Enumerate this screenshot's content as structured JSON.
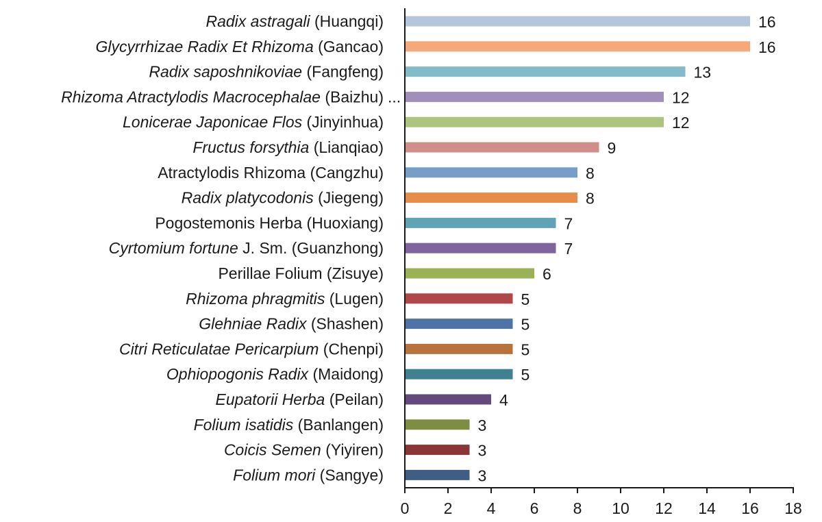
{
  "chart_data": {
    "type": "bar",
    "orientation": "horizontal",
    "title": "",
    "xlabel": "",
    "ylabel": "",
    "xlim": [
      0,
      18
    ],
    "x_ticks": [
      0,
      2,
      4,
      6,
      8,
      10,
      12,
      14,
      16,
      18
    ],
    "grid": false,
    "categories": [
      {
        "italic": "Radix astragali",
        "plain": " (Huangqi)",
        "value": 16,
        "color": "#b5c6dc"
      },
      {
        "italic": "Glycyrrhizae Radix Et Rhizoma",
        "plain": " (Gancao)",
        "value": 16,
        "color": "#f6a87a"
      },
      {
        "italic": "Radix saposhnikoviae",
        "plain": " (Fangfeng)",
        "value": 13,
        "color": "#82bccb"
      },
      {
        "italic": "Rhizoma Atractylodis Macrocephalae",
        "plain": " (Baizhu)",
        "value": 12,
        "color": "#9f8fba"
      },
      {
        "italic": "Lonicerae Japonicae Flos",
        "plain": " (Jinyinhua)",
        "value": 12,
        "color": "#adc47e"
      },
      {
        "italic": "Fructus forsythia",
        "plain": " (Lianqiao)",
        "value": 9,
        "color": "#d08e8a"
      },
      {
        "italic": "",
        "plain": "Atractylodis Rhizoma (Cangzhu)",
        "value": 8,
        "color": "#779dc9"
      },
      {
        "italic": "Radix platycodonis",
        "plain": " (Jiegeng)",
        "value": 8,
        "color": "#e68d4b"
      },
      {
        "italic": "",
        "plain": "Pogostemonis Herba (Huoxiang)",
        "value": 7,
        "color": "#5ea4b6"
      },
      {
        "italic": "Cyrtomium fortune",
        "plain": " J. Sm. (Guanzhong)",
        "value": 7,
        "color": "#7f64a0"
      },
      {
        "italic": "",
        "plain": "Perillae Folium (Zisuye)",
        "value": 6,
        "color": "#9bb156"
      },
      {
        "italic": "Rhizoma phragmitis",
        "plain": " (Lugen)",
        "value": 5,
        "color": "#b0484b"
      },
      {
        "italic": "Glehniae Radix",
        "plain": " (Shashen)",
        "value": 5,
        "color": "#4e73a8"
      },
      {
        "italic": "Citri Reticulatae Pericarpium",
        "plain": " (Chenpi)",
        "value": 5,
        "color": "#b8733d"
      },
      {
        "italic": "Ophiopogonis Radix",
        "plain": " (Maidong)",
        "value": 5,
        "color": "#3f8191"
      },
      {
        "italic": "Eupatorii Herba",
        "plain": " (Peilan)",
        "value": 4,
        "color": "#65497d"
      },
      {
        "italic": "Folium isatidis",
        "plain": " (Banlangen)",
        "value": 3,
        "color": "#7d8d41"
      },
      {
        "italic": "Coicis Semen",
        "plain": " (Yiyiren)",
        "value": 3,
        "color": "#8b3537"
      },
      {
        "italic": "Folium mori",
        "plain": " (Sangye)",
        "value": 3,
        "color": "#405e85"
      }
    ],
    "truncation_marker": "..."
  }
}
